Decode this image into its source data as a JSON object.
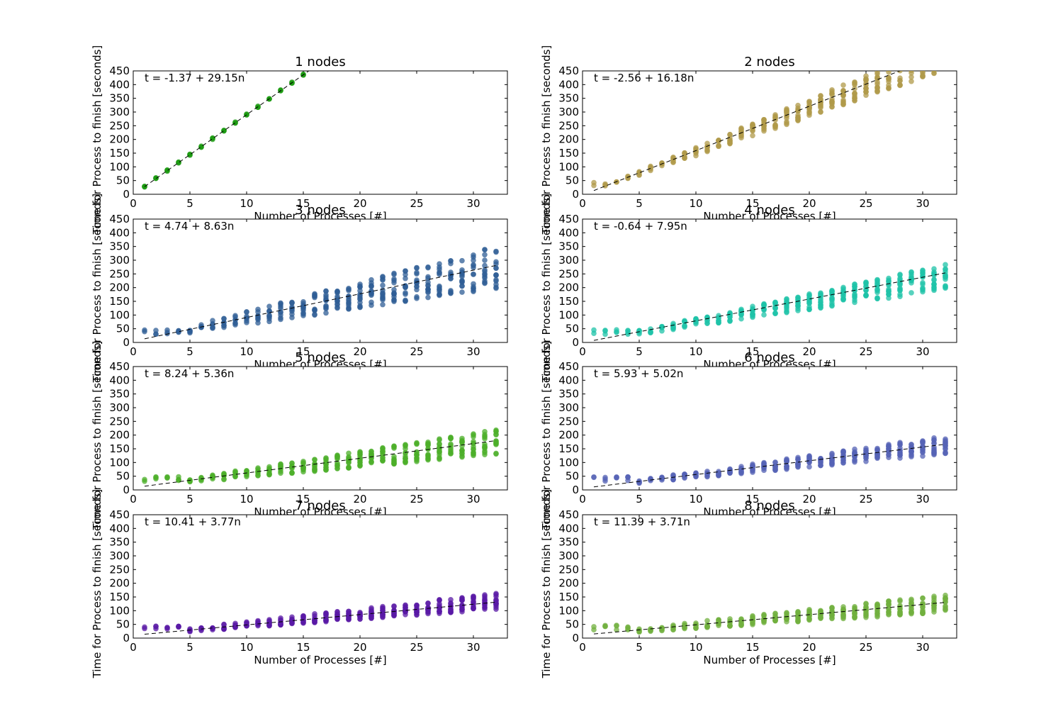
{
  "chart_data": [
    {
      "type": "scatter",
      "title": "1 nodes",
      "fit_label": "t = -1.37 + 29.15n",
      "xlabel": "Number of Processes [#]",
      "ylabel": "Time for Process to finish [seconds]",
      "xlim": [
        0,
        33
      ],
      "ylim": [
        0,
        450
      ],
      "xticks": [
        0,
        5,
        10,
        15,
        20,
        25,
        30
      ],
      "yticks": [
        0,
        50,
        100,
        150,
        200,
        250,
        300,
        350,
        400,
        450
      ],
      "color": "#1a9a0f",
      "n_max": 15,
      "intercept": -1.37,
      "slope": 29.15,
      "spread_low": 0,
      "spread_high": 0,
      "grid": false
    },
    {
      "type": "scatter",
      "title": "2 nodes",
      "fit_label": "t = -2.56 + 16.18n",
      "xlabel": "Number of Processes [#]",
      "ylabel": "Time for Process to finish [seconds]",
      "xlim": [
        0,
        33
      ],
      "ylim": [
        0,
        450
      ],
      "xticks": [
        0,
        5,
        10,
        15,
        20,
        25,
        30
      ],
      "yticks": [
        0,
        50,
        100,
        150,
        200,
        250,
        300,
        350,
        400,
        450
      ],
      "color": "#b09a4a",
      "n_max": 31,
      "intercept": -2.56,
      "slope": 16.18,
      "spread_low": 0.12,
      "spread_high": 0.08,
      "grid": false
    },
    {
      "type": "scatter",
      "title": "3 nodes",
      "fit_label": "t = 4.74 + 8.63n",
      "xlabel": "Number of Processes [#]",
      "ylabel": "Time for Process to finish [seconds]",
      "xlim": [
        0,
        33
      ],
      "ylim": [
        0,
        450
      ],
      "xticks": [
        0,
        5,
        10,
        15,
        20,
        25,
        30
      ],
      "yticks": [
        0,
        50,
        100,
        150,
        200,
        250,
        300,
        350,
        400,
        450
      ],
      "color": "#2f5e95",
      "n_max": 32,
      "intercept": 4.74,
      "slope": 8.63,
      "spread_low": 0.3,
      "spread_high": 0.25,
      "grid": false
    },
    {
      "type": "scatter",
      "title": "4 nodes",
      "fit_label": "t = -0.64 + 7.95n",
      "xlabel": "Number of Processes [#]",
      "ylabel": "Time for Process to finish [seconds]",
      "xlim": [
        0,
        33
      ],
      "ylim": [
        0,
        450
      ],
      "xticks": [
        0,
        5,
        10,
        15,
        20,
        25,
        30
      ],
      "yticks": [
        0,
        50,
        100,
        150,
        200,
        250,
        300,
        350,
        400,
        450
      ],
      "color": "#1fc3a8",
      "n_max": 32,
      "intercept": -0.64,
      "slope": 7.95,
      "spread_low": 0.25,
      "spread_high": 0.12,
      "grid": false
    },
    {
      "type": "scatter",
      "title": "5 nodes",
      "fit_label": "t = 8.24 + 5.36n",
      "xlabel": "Number of Processes [#]",
      "ylabel": "Time for Process to finish [seconds]",
      "xlim": [
        0,
        33
      ],
      "ylim": [
        0,
        450
      ],
      "xticks": [
        0,
        5,
        10,
        15,
        20,
        25,
        30
      ],
      "yticks": [
        0,
        50,
        100,
        150,
        200,
        250,
        300,
        350,
        400,
        450
      ],
      "color": "#4caf2a",
      "n_max": 32,
      "intercept": 8.24,
      "slope": 5.36,
      "spread_low": 0.28,
      "spread_high": 0.22,
      "grid": false
    },
    {
      "type": "scatter",
      "title": "6 nodes",
      "fit_label": "t = 5.93 + 5.02n",
      "xlabel": "Number of Processes [#]",
      "ylabel": "Time for Process to finish [seconds]",
      "xlim": [
        0,
        33
      ],
      "ylim": [
        0,
        450
      ],
      "xticks": [
        0,
        5,
        10,
        15,
        20,
        25,
        30
      ],
      "yticks": [
        0,
        50,
        100,
        150,
        200,
        250,
        300,
        350,
        400,
        450
      ],
      "color": "#5563b5",
      "n_max": 32,
      "intercept": 5.93,
      "slope": 5.02,
      "spread_low": 0.22,
      "spread_high": 0.18,
      "grid": false
    },
    {
      "type": "scatter",
      "title": "7 nodes",
      "fit_label": "t = 10.41 + 3.77n",
      "xlabel": "Number of Processes [#]",
      "ylabel": "Time for Process to finish [seconds]",
      "xlim": [
        0,
        33
      ],
      "ylim": [
        0,
        450
      ],
      "xticks": [
        0,
        5,
        10,
        15,
        20,
        25,
        30
      ],
      "yticks": [
        0,
        50,
        100,
        150,
        200,
        250,
        300,
        350,
        400,
        450
      ],
      "color": "#5a1aa5",
      "n_max": 32,
      "intercept": 10.41,
      "slope": 3.77,
      "spread_low": 0.2,
      "spread_high": 0.25,
      "grid": false
    },
    {
      "type": "scatter",
      "title": "8 nodes",
      "fit_label": "t = 11.39 + 3.71n",
      "xlabel": "Number of Processes [#]",
      "ylabel": "Time for Process to finish [seconds]",
      "xlim": [
        0,
        33
      ],
      "ylim": [
        0,
        450
      ],
      "xticks": [
        0,
        5,
        10,
        15,
        20,
        25,
        30
      ],
      "yticks": [
        0,
        50,
        100,
        150,
        200,
        250,
        300,
        350,
        400,
        450
      ],
      "color": "#72b03f",
      "n_max": 32,
      "intercept": 11.39,
      "slope": 3.71,
      "spread_low": 0.28,
      "spread_high": 0.22,
      "grid": false
    }
  ]
}
